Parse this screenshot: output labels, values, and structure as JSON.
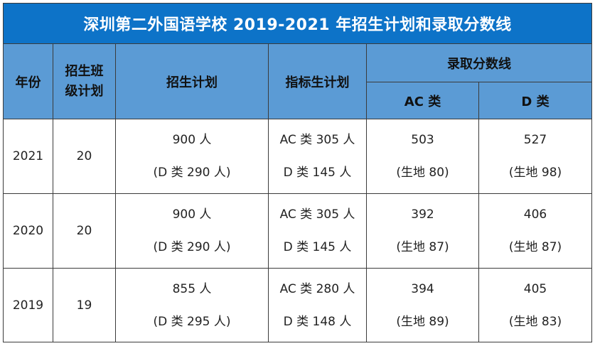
{
  "title": "深圳第二外国语学校 2019-2021 年招生计划和录取分数线",
  "headers": {
    "year": "年份",
    "class_plan_line1": "招生班",
    "class_plan_line2": "级计划",
    "enroll_plan": "招生计划",
    "quota_plan": "指标生计划",
    "score_line": "录取分数线",
    "ac": "AC 类",
    "d": "D 类"
  },
  "rows": [
    {
      "year": "2021",
      "classes": "20",
      "plan": "900 人",
      "plan_sub": "(D 类 290 人)",
      "quota_ac": "AC 类 305 人",
      "quota_d": "D 类 145 人",
      "ac_score": "503",
      "ac_sub": "(生地 80)",
      "d_score": "527",
      "d_sub": "(生地 98)"
    },
    {
      "year": "2020",
      "classes": "20",
      "plan": "900 人",
      "plan_sub": "(D 类 290 人)",
      "quota_ac": "AC 类 305 人",
      "quota_d": "D 类 145 人",
      "ac_score": "392",
      "ac_sub": "(生地 87)",
      "d_score": "406",
      "d_sub": "(生地 87)"
    },
    {
      "year": "2019",
      "classes": "19",
      "plan": "855 人",
      "plan_sub": "(D 类 295 人)",
      "quota_ac": "AC 类 280 人",
      "quota_d": "D 类 148 人",
      "ac_score": "394",
      "ac_sub": "(生地 89)",
      "d_score": "405",
      "d_sub": "(生地 83)"
    }
  ],
  "colors": {
    "title_bg": "#0d73c8",
    "header_bg": "#5b9bd5",
    "border": "#3b3b3b"
  }
}
